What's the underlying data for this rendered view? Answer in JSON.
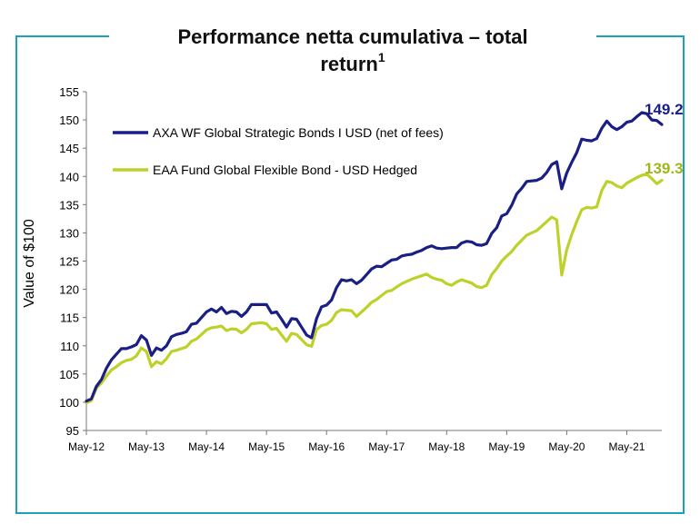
{
  "colors": {
    "frame": "#1aa3b8",
    "series_1": "#1a1f86",
    "series_2": "#bed12a",
    "end_label_2": "#a2b51a"
  },
  "chart_data": {
    "type": "line",
    "title": "Performance netta cumulativa – total return",
    "title_line1": "Performance netta cumulativa – total",
    "title_line2": "return",
    "title_footnote": "1",
    "xlabel": "",
    "ylabel": "Value of $100",
    "ylim": [
      95,
      155
    ],
    "yticks": [
      95,
      100,
      105,
      110,
      115,
      120,
      125,
      130,
      135,
      140,
      145,
      150,
      155
    ],
    "xticks": [
      "May-12",
      "May-13",
      "May-14",
      "May-15",
      "May-16",
      "May-17",
      "May-18",
      "May-19",
      "May-20",
      "May-21"
    ],
    "grid": false,
    "legend_position": "top-left",
    "x": [
      "May-12",
      "Jun-12",
      "Jul-12",
      "Aug-12",
      "Sep-12",
      "Oct-12",
      "Nov-12",
      "Dec-12",
      "Jan-13",
      "Feb-13",
      "Mar-13",
      "Apr-13",
      "May-13",
      "Jun-13",
      "Jul-13",
      "Aug-13",
      "Sep-13",
      "Oct-13",
      "Nov-13",
      "Dec-13",
      "Jan-14",
      "Feb-14",
      "Mar-14",
      "Apr-14",
      "May-14",
      "Jun-14",
      "Jul-14",
      "Aug-14",
      "Sep-14",
      "Oct-14",
      "Nov-14",
      "Dec-14",
      "Jan-15",
      "Feb-15",
      "Mar-15",
      "Apr-15",
      "May-15",
      "Jun-15",
      "Jul-15",
      "Aug-15",
      "Sep-15",
      "Oct-15",
      "Nov-15",
      "Dec-15",
      "Jan-16",
      "Feb-16",
      "Mar-16",
      "Apr-16",
      "May-16",
      "Jun-16",
      "Jul-16",
      "Aug-16",
      "Sep-16",
      "Oct-16",
      "Nov-16",
      "Dec-16",
      "Jan-17",
      "Feb-17",
      "Mar-17",
      "Apr-17",
      "May-17",
      "Jun-17",
      "Jul-17",
      "Aug-17",
      "Sep-17",
      "Oct-17",
      "Nov-17",
      "Dec-17",
      "Jan-18",
      "Feb-18",
      "Mar-18",
      "Apr-18",
      "May-18",
      "Jun-18",
      "Jul-18",
      "Aug-18",
      "Sep-18",
      "Oct-18",
      "Nov-18",
      "Dec-18",
      "Jan-19",
      "Feb-19",
      "Mar-19",
      "Apr-19",
      "May-19",
      "Jun-19",
      "Jul-19",
      "Aug-19",
      "Sep-19",
      "Oct-19",
      "Nov-19",
      "Dec-19",
      "Jan-20",
      "Feb-20",
      "Mar-20",
      "Apr-20",
      "May-20",
      "Jun-20",
      "Jul-20",
      "Aug-20",
      "Sep-20",
      "Oct-20",
      "Nov-20",
      "Dec-20",
      "Jan-21",
      "Feb-21",
      "Mar-21",
      "Apr-21",
      "May-21",
      "Jun-21",
      "Jul-21",
      "Aug-21",
      "Sep-21",
      "Oct-21",
      "Nov-21",
      "Dec-21"
    ],
    "series": [
      {
        "name": "AXA WF Global Strategic Bonds I USD (net of fees)",
        "end_label": "149.2",
        "values": [
          100.2,
          100.6,
          102.8,
          104.0,
          106.0,
          107.5,
          108.5,
          109.5,
          109.5,
          109.8,
          110.2,
          111.8,
          111.0,
          108.3,
          109.6,
          109.2,
          110.0,
          111.6,
          112.0,
          112.2,
          112.5,
          113.8,
          114.0,
          115.0,
          116.0,
          116.5,
          116.0,
          116.8,
          115.7,
          116.1,
          116.0,
          115.2,
          116.0,
          117.3,
          117.3,
          117.3,
          117.3,
          115.8,
          116.0,
          114.7,
          113.3,
          114.8,
          114.7,
          113.3,
          111.9,
          111.4,
          114.8,
          116.9,
          117.2,
          118.1,
          120.3,
          121.7,
          121.5,
          121.7,
          121.0,
          121.6,
          122.6,
          123.6,
          124.1,
          124.0,
          124.6,
          125.2,
          125.3,
          125.9,
          126.1,
          126.2,
          126.6,
          126.9,
          127.4,
          127.7,
          127.3,
          127.2,
          127.3,
          127.4,
          127.4,
          128.2,
          128.5,
          128.4,
          127.9,
          127.8,
          128.1,
          129.9,
          130.9,
          133.0,
          133.4,
          134.9,
          136.9,
          137.9,
          139.1,
          139.2,
          139.3,
          139.7,
          140.7,
          142.1,
          142.6,
          137.8,
          140.6,
          142.5,
          144.2,
          146.6,
          146.4,
          146.3,
          146.7,
          148.5,
          149.8,
          148.8,
          148.3,
          148.8,
          149.6,
          149.8,
          150.6,
          151.3,
          151.1,
          150.0,
          149.9,
          149.2
        ]
      },
      {
        "name": "EAA Fund Global Flexible Bond - USD Hedged",
        "end_label": "139.3",
        "values": [
          99.9,
          100.3,
          102.5,
          103.4,
          104.6,
          105.7,
          106.3,
          107.0,
          107.4,
          107.6,
          108.2,
          109.6,
          109.0,
          106.3,
          107.2,
          106.8,
          107.7,
          109.0,
          109.2,
          109.5,
          109.8,
          110.8,
          111.2,
          112.0,
          112.8,
          113.2,
          113.3,
          113.5,
          112.7,
          113.0,
          112.9,
          112.3,
          112.9,
          113.9,
          114.0,
          114.1,
          113.9,
          112.9,
          113.1,
          111.9,
          110.8,
          112.2,
          112.0,
          111.1,
          110.2,
          109.9,
          112.9,
          113.6,
          113.8,
          114.5,
          115.9,
          116.4,
          116.3,
          116.2,
          115.2,
          116.0,
          116.8,
          117.7,
          118.2,
          118.9,
          119.6,
          119.8,
          120.4,
          121.0,
          121.4,
          121.8,
          122.1,
          122.4,
          122.7,
          122.1,
          121.8,
          121.6,
          121.0,
          120.7,
          121.3,
          121.7,
          121.4,
          121.1,
          120.5,
          120.3,
          120.7,
          122.6,
          123.7,
          125.0,
          125.9,
          126.7,
          127.8,
          128.7,
          129.6,
          130.0,
          130.4,
          131.2,
          132.0,
          132.8,
          132.3,
          122.5,
          127.0,
          129.7,
          132.0,
          134.1,
          134.5,
          134.4,
          134.6,
          137.5,
          139.1,
          138.9,
          138.3,
          138.0,
          138.8,
          139.3,
          139.8,
          140.2,
          140.4,
          139.6,
          138.7,
          139.3
        ]
      }
    ]
  }
}
